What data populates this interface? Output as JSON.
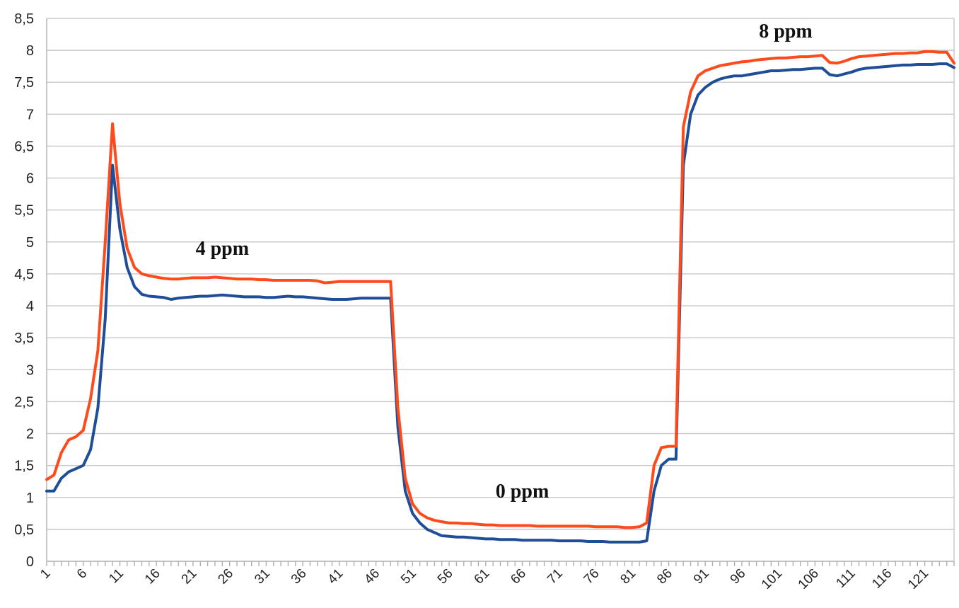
{
  "chart_data": {
    "type": "line",
    "title": "",
    "xlabel": "",
    "ylabel": "",
    "x_start": 1,
    "x_end": 125,
    "x_tick_labels": [
      "1",
      "6",
      "11",
      "16",
      "21",
      "26",
      "31",
      "36",
      "41",
      "46",
      "51",
      "56",
      "61",
      "66",
      "71",
      "76",
      "81",
      "86",
      "91",
      "96",
      "101",
      "106",
      "111",
      "116",
      "121"
    ],
    "y_tick_labels": [
      "0",
      "0,5",
      "1",
      "1,5",
      "2",
      "2,5",
      "3",
      "3,5",
      "4",
      "4,5",
      "5",
      "5,5",
      "6",
      "6,5",
      "7",
      "7,5",
      "8",
      "8,5"
    ],
    "ylim": [
      0,
      8.5
    ],
    "grid": true,
    "legend": "none",
    "annotations": [
      {
        "text": "4 ppm",
        "x": 25,
        "y": 4.8
      },
      {
        "text": "0 ppm",
        "x": 66,
        "y": 1.0
      },
      {
        "text": "8 ppm",
        "x": 102,
        "y": 8.2
      }
    ],
    "series": [
      {
        "color": "#1f4e99",
        "values": [
          1.1,
          1.1,
          1.3,
          1.4,
          1.45,
          1.5,
          1.75,
          2.4,
          3.8,
          6.2,
          5.2,
          4.6,
          4.3,
          4.18,
          4.15,
          4.14,
          4.13,
          4.1,
          4.12,
          4.13,
          4.14,
          4.15,
          4.15,
          4.16,
          4.17,
          4.16,
          4.15,
          4.14,
          4.14,
          4.14,
          4.13,
          4.13,
          4.14,
          4.15,
          4.14,
          4.14,
          4.13,
          4.12,
          4.11,
          4.1,
          4.1,
          4.1,
          4.11,
          4.12,
          4.12,
          4.12,
          4.12,
          4.12,
          2.1,
          1.1,
          0.75,
          0.6,
          0.5,
          0.45,
          0.4,
          0.39,
          0.38,
          0.38,
          0.37,
          0.36,
          0.35,
          0.35,
          0.34,
          0.34,
          0.34,
          0.33,
          0.33,
          0.33,
          0.33,
          0.33,
          0.32,
          0.32,
          0.32,
          0.32,
          0.31,
          0.31,
          0.31,
          0.3,
          0.3,
          0.3,
          0.3,
          0.3,
          0.32,
          1.1,
          1.5,
          1.6,
          1.6,
          6.2,
          7.0,
          7.3,
          7.42,
          7.5,
          7.55,
          7.58,
          7.6,
          7.6,
          7.62,
          7.64,
          7.66,
          7.68,
          7.68,
          7.69,
          7.7,
          7.7,
          7.71,
          7.72,
          7.72,
          7.62,
          7.6,
          7.63,
          7.66,
          7.7,
          7.72,
          7.73,
          7.74,
          7.75,
          7.76,
          7.77,
          7.77,
          7.78,
          7.78,
          7.78,
          7.79,
          7.79,
          7.73
        ]
      },
      {
        "color": "#ff4a1c",
        "values": [
          1.28,
          1.35,
          1.7,
          1.9,
          1.95,
          2.05,
          2.55,
          3.3,
          5.0,
          6.85,
          5.6,
          4.9,
          4.6,
          4.5,
          4.47,
          4.45,
          4.43,
          4.42,
          4.42,
          4.43,
          4.44,
          4.44,
          4.44,
          4.45,
          4.44,
          4.43,
          4.42,
          4.42,
          4.42,
          4.41,
          4.41,
          4.4,
          4.4,
          4.4,
          4.4,
          4.4,
          4.4,
          4.39,
          4.36,
          4.37,
          4.38,
          4.38,
          4.38,
          4.38,
          4.38,
          4.38,
          4.38,
          4.38,
          2.4,
          1.3,
          0.9,
          0.75,
          0.68,
          0.64,
          0.62,
          0.6,
          0.6,
          0.59,
          0.59,
          0.58,
          0.57,
          0.57,
          0.56,
          0.56,
          0.56,
          0.56,
          0.56,
          0.55,
          0.55,
          0.55,
          0.55,
          0.55,
          0.55,
          0.55,
          0.55,
          0.54,
          0.54,
          0.54,
          0.54,
          0.53,
          0.53,
          0.54,
          0.6,
          1.5,
          1.78,
          1.8,
          1.8,
          6.8,
          7.35,
          7.6,
          7.68,
          7.72,
          7.76,
          7.78,
          7.8,
          7.82,
          7.83,
          7.85,
          7.86,
          7.87,
          7.88,
          7.88,
          7.89,
          7.9,
          7.9,
          7.91,
          7.92,
          7.81,
          7.8,
          7.83,
          7.87,
          7.9,
          7.91,
          7.92,
          7.93,
          7.94,
          7.95,
          7.95,
          7.96,
          7.96,
          7.98,
          7.98,
          7.97,
          7.97,
          7.8
        ]
      }
    ]
  }
}
